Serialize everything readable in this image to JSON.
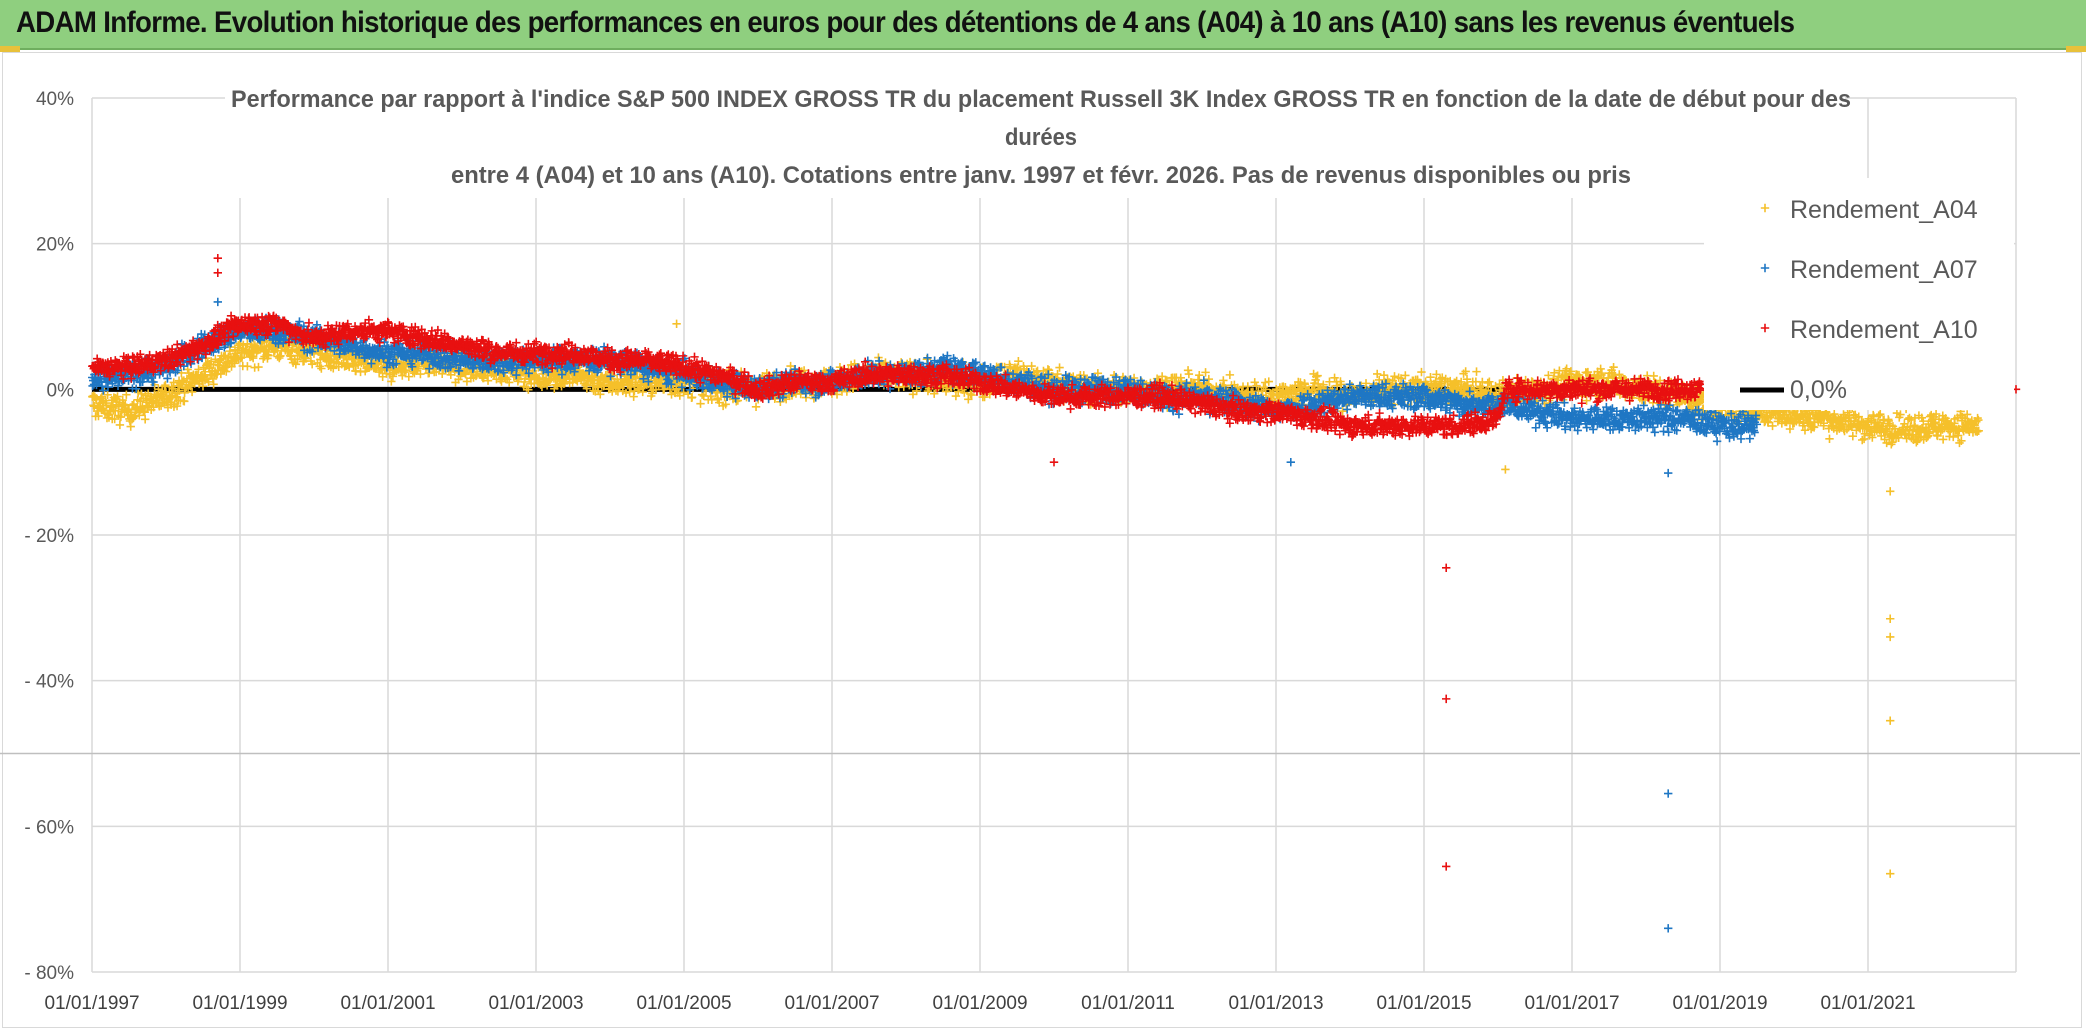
{
  "banner": {
    "title": "ADAM Informe. Evolution historique des performances en euros pour des détentions de 4 ans (A04) à 10 ans (A10) sans les revenus éventuels",
    "background_color": "#8fcf7f"
  },
  "chart_data": {
    "type": "scatter",
    "title": [
      "Performance par rapport à l'indice S&P 500 INDEX GROSS TR  du placement Russell 3K Index GROSS TR en fonction de la date de début pour des",
      "durées",
      "entre 4 (A04) et 10 ans (A10). Cotations entre janv. 1997 et févr. 2026. Pas de revenus disponibles ou pris"
    ],
    "xlabel": "",
    "ylabel": "",
    "x_ticks": [
      "01/01/1997",
      "01/01/1999",
      "01/01/2001",
      "01/01/2003",
      "01/01/2005",
      "01/01/2007",
      "01/01/2009",
      "01/01/2011",
      "01/01/2013",
      "01/01/2015",
      "01/01/2017",
      "01/01/2019",
      "01/01/2021"
    ],
    "x_range_years": [
      1997.0,
      2023.0
    ],
    "y_ticks": [
      "40%",
      "20%",
      "0%",
      "- 20%",
      "- 40%",
      "- 60%",
      "- 80%"
    ],
    "y_tick_values": [
      40,
      20,
      0,
      -20,
      -40,
      -60,
      -80
    ],
    "ylim": [
      -80,
      40
    ],
    "grid": true,
    "legend_position": "right",
    "marker": "plus",
    "reference_line": {
      "name": "0,0%",
      "y": 0,
      "color": "#000000"
    },
    "series": [
      {
        "name": "Rendement_A04",
        "color": "#f5c02a",
        "trend": [
          [
            1997.0,
            -2
          ],
          [
            1997.5,
            -3
          ],
          [
            1998.0,
            -1
          ],
          [
            1998.5,
            2
          ],
          [
            1999.0,
            5
          ],
          [
            1999.5,
            6
          ],
          [
            2000.0,
            5
          ],
          [
            2000.5,
            4
          ],
          [
            2001.0,
            3
          ],
          [
            2001.5,
            4
          ],
          [
            2002.0,
            3
          ],
          [
            2002.5,
            3
          ],
          [
            2003.0,
            2
          ],
          [
            2003.5,
            2
          ],
          [
            2004.0,
            1
          ],
          [
            2004.5,
            1
          ],
          [
            2005.0,
            1
          ],
          [
            2005.5,
            0
          ],
          [
            2006.0,
            0
          ],
          [
            2006.5,
            1
          ],
          [
            2007.0,
            1
          ],
          [
            2007.5,
            2
          ],
          [
            2008.0,
            2
          ],
          [
            2008.5,
            1
          ],
          [
            2009.0,
            1
          ],
          [
            2009.5,
            2
          ],
          [
            2010.0,
            1
          ],
          [
            2010.5,
            0
          ],
          [
            2011.0,
            0
          ],
          [
            2011.5,
            0
          ],
          [
            2012.0,
            0
          ],
          [
            2012.5,
            -1
          ],
          [
            2013.0,
            -1
          ],
          [
            2013.5,
            0
          ],
          [
            2014.0,
            -1
          ],
          [
            2014.5,
            0
          ],
          [
            2015.0,
            0
          ],
          [
            2015.5,
            0
          ],
          [
            2016.0,
            -1
          ],
          [
            2016.5,
            0
          ],
          [
            2017.0,
            1
          ],
          [
            2017.5,
            1
          ],
          [
            2018.0,
            0
          ],
          [
            2018.5,
            -1
          ],
          [
            2018.75,
            -2
          ],
          [
            2020.75,
            -4.5
          ],
          [
            2021.0,
            -5
          ],
          [
            2021.5,
            -5.5
          ],
          [
            2022.0,
            -5
          ],
          [
            2022.5,
            -5
          ]
        ],
        "spread": 2.5,
        "outliers": [
          [
            2021.3,
            -14
          ],
          [
            2021.3,
            -31.5
          ],
          [
            2021.3,
            -34
          ],
          [
            2021.3,
            -45.5
          ],
          [
            2021.3,
            -66.5
          ],
          [
            2004.9,
            9
          ],
          [
            2016.1,
            -11
          ]
        ]
      },
      {
        "name": "Rendement_A07",
        "color": "#1f77c4",
        "trend": [
          [
            1997.0,
            1
          ],
          [
            1997.5,
            2
          ],
          [
            1998.0,
            3
          ],
          [
            1998.5,
            6
          ],
          [
            1999.0,
            8
          ],
          [
            1999.5,
            8
          ],
          [
            2000.0,
            7
          ],
          [
            2000.5,
            6
          ],
          [
            2001.0,
            5
          ],
          [
            2001.5,
            5
          ],
          [
            2002.0,
            4
          ],
          [
            2002.5,
            4
          ],
          [
            2003.0,
            4
          ],
          [
            2003.5,
            4
          ],
          [
            2004.0,
            4
          ],
          [
            2004.5,
            3
          ],
          [
            2005.0,
            2
          ],
          [
            2005.5,
            1
          ],
          [
            2006.0,
            0
          ],
          [
            2006.5,
            1
          ],
          [
            2007.0,
            1
          ],
          [
            2007.5,
            2
          ],
          [
            2008.0,
            2
          ],
          [
            2008.5,
            3
          ],
          [
            2009.0,
            2
          ],
          [
            2009.5,
            1
          ],
          [
            2010.0,
            0
          ],
          [
            2010.5,
            0
          ],
          [
            2011.0,
            0
          ],
          [
            2011.5,
            -1
          ],
          [
            2012.0,
            -1
          ],
          [
            2012.5,
            -2
          ],
          [
            2013.0,
            -3
          ],
          [
            2013.5,
            -2
          ],
          [
            2014.0,
            -1
          ],
          [
            2014.5,
            -1
          ],
          [
            2015.0,
            -1
          ],
          [
            2015.5,
            -2
          ],
          [
            2016.0,
            -2
          ],
          [
            2016.5,
            -3
          ],
          [
            2017.0,
            -4
          ],
          [
            2017.5,
            -4
          ],
          [
            2018.0,
            -4
          ],
          [
            2018.5,
            -4
          ],
          [
            2019.0,
            -5
          ],
          [
            2019.5,
            -5
          ]
        ],
        "spread": 2.2,
        "outliers": [
          [
            2018.3,
            -55.5
          ],
          [
            2018.3,
            -74
          ],
          [
            2013.2,
            -10
          ],
          [
            2018.3,
            -11.5
          ],
          [
            1998.7,
            12
          ]
        ]
      },
      {
        "name": "Rendement_A10",
        "color": "#e81010",
        "trend": [
          [
            1997.0,
            3
          ],
          [
            1997.5,
            3
          ],
          [
            1998.0,
            4
          ],
          [
            1998.5,
            6
          ],
          [
            1999.0,
            9
          ],
          [
            1999.5,
            9
          ],
          [
            2000.0,
            7
          ],
          [
            2000.5,
            8
          ],
          [
            2001.0,
            8
          ],
          [
            2001.5,
            7
          ],
          [
            2002.0,
            6
          ],
          [
            2002.5,
            5
          ],
          [
            2003.0,
            5
          ],
          [
            2003.5,
            5
          ],
          [
            2004.0,
            4
          ],
          [
            2004.5,
            4
          ],
          [
            2005.0,
            3
          ],
          [
            2005.5,
            2
          ],
          [
            2006.0,
            0
          ],
          [
            2006.5,
            1
          ],
          [
            2007.0,
            1
          ],
          [
            2007.5,
            2
          ],
          [
            2008.0,
            2
          ],
          [
            2008.5,
            2
          ],
          [
            2009.0,
            1
          ],
          [
            2009.5,
            0
          ],
          [
            2010.0,
            -1
          ],
          [
            2010.5,
            -1
          ],
          [
            2011.0,
            -1
          ],
          [
            2011.5,
            -1
          ],
          [
            2012.0,
            -2
          ],
          [
            2012.5,
            -3
          ],
          [
            2013.0,
            -3
          ],
          [
            2013.5,
            -4
          ],
          [
            2014.0,
            -5
          ],
          [
            2014.5,
            -5
          ],
          [
            2015.0,
            -5
          ],
          [
            2015.5,
            -5
          ],
          [
            2016.0,
            -4
          ],
          [
            2016.1,
            0
          ],
          [
            2016.5,
            0
          ],
          [
            2017.0,
            0
          ],
          [
            2017.5,
            0
          ],
          [
            2018.0,
            0
          ],
          [
            2018.5,
            0
          ],
          [
            2018.75,
            0
          ]
        ],
        "spread": 1.8,
        "outliers": [
          [
            2015.3,
            -24.5
          ],
          [
            2015.3,
            -42.5
          ],
          [
            2015.3,
            -65.5
          ],
          [
            1998.7,
            18
          ],
          [
            1998.7,
            16
          ],
          [
            2010.0,
            -10
          ],
          [
            2023.0,
            0
          ]
        ]
      }
    ]
  }
}
